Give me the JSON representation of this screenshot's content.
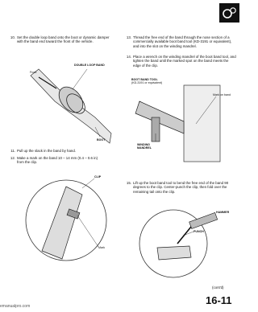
{
  "steps": [
    {
      "number": "10.",
      "text": "Set the double loop band onto the boot or dynamic damper with the band end toward the front of the vehicle."
    },
    {
      "number": "11.",
      "text": "Pull up the slack in the band by hand."
    },
    {
      "number": "12.",
      "text": "Make a mark on the band 10 – 14 mm (0.4 – 0.6 in) from the clip."
    },
    {
      "number": "13.",
      "text": "Thread the free end of the band through the nose section of a commercially available boot band tool (KD-3191 or equivalent), and into the slot on the winding mandrel."
    },
    {
      "number": "14.",
      "text": "Place a wrench on the winding mandrel of the boot band tool, and tighten the band until the marked spot on the band meets the edge of the clip."
    },
    {
      "number": "15.",
      "text": "Lift up the boot band tool to bend the free end of the band 90 degrees to the clip. Center-punch the clip, then fold over the remaining tail onto the clip."
    }
  ],
  "figures": [
    {
      "labels": [
        "DOUBLE LOOP BAND",
        "Front",
        "BOOT"
      ]
    },
    {
      "labels": [
        "CLIP",
        "Mark"
      ]
    },
    {
      "labels": [
        "BOOT BAND TOOL",
        "(KD-3191 or equivalent)",
        "Mark on band",
        "WINDING MANDREL"
      ]
    },
    {
      "labels": [
        "HAMMER",
        "PUNCH"
      ]
    }
  ],
  "footer": {
    "continued": "(cont'd)",
    "page_number": "16-11",
    "watermark": "emanualpro.com"
  }
}
